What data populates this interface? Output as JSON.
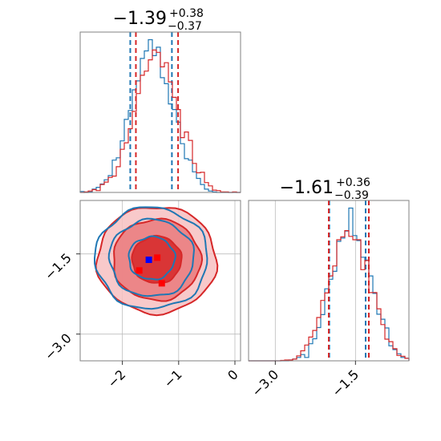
{
  "chart_data": {
    "type": "corner",
    "parameters": [
      {
        "title_value": "−1.39",
        "title_plus": "+0.38",
        "title_minus": "−0.37",
        "range": [
          -2.75,
          0.1
        ]
      },
      {
        "title_value": "−1.61",
        "title_plus": "+0.36",
        "title_minus": "−0.39",
        "range": [
          -3.5,
          -0.5
        ]
      }
    ],
    "x_ticks_param1": [
      {
        "value": -2,
        "label": "−2"
      },
      {
        "value": -1,
        "label": "−1"
      },
      {
        "value": 0,
        "label": "0"
      }
    ],
    "x_ticks_param2": [
      {
        "value": -3.0,
        "label": "−3.0"
      },
      {
        "value": -1.5,
        "label": "−1.5"
      }
    ],
    "y_ticks_param2": [
      {
        "value": -1.5,
        "label": "−1.5"
      },
      {
        "value": -3.0,
        "label": "−3.0"
      }
    ],
    "series": [
      {
        "color": "#1f77b4",
        "mean": [
          -1.48,
          -1.58
        ],
        "sd": [
          0.37,
          0.36
        ],
        "quantiles_param1": [
          -1.86,
          -1.12
        ],
        "quantiles_param2": [
          -1.99,
          -1.31
        ],
        "contour_radii": [
          [
            0.41,
            0.4
          ],
          [
            0.75,
            0.72
          ],
          [
            1.0,
            0.95
          ]
        ]
      },
      {
        "color": "#d62728",
        "mean": [
          -1.39,
          -1.61
        ],
        "sd": [
          0.38,
          0.38
        ],
        "quantiles_param1": [
          -1.76,
          -1.01
        ],
        "quantiles_param2": [
          -2.0,
          -1.25
        ],
        "contour_radii": [
          [
            0.44,
            0.44
          ],
          [
            0.78,
            0.76
          ],
          [
            1.06,
            1.0
          ]
        ]
      }
    ],
    "markers": [
      {
        "x": -1.53,
        "y": -1.61,
        "color": "#0000ff"
      },
      {
        "x": -1.38,
        "y": -1.57,
        "color": "#ff0000"
      },
      {
        "x": -1.7,
        "y": -1.81,
        "color": "#ff0000"
      },
      {
        "x": -1.3,
        "y": -2.05,
        "color": "#ff0000"
      }
    ]
  }
}
